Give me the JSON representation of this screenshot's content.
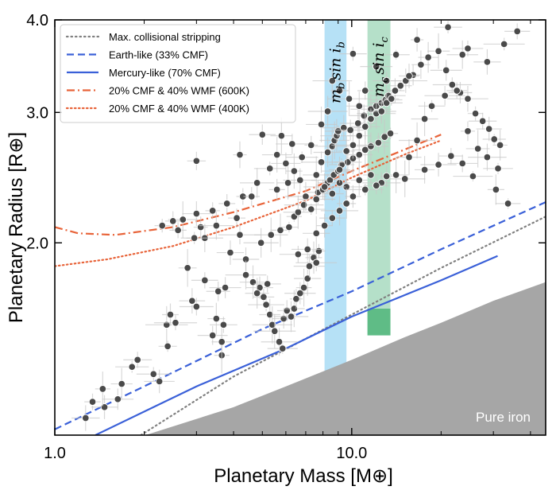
{
  "chart_data": {
    "type": "scatter",
    "x_scale": "log",
    "y_scale": "log",
    "xlabel": "Planetary Mass [M⊕]",
    "ylabel": "Planetary Radius [R⊕]",
    "xlim": [
      1.0,
      45
    ],
    "ylim": [
      1.1,
      4.0
    ],
    "x_ticks": [
      {
        "value": 1.0,
        "label": "1.0"
      },
      {
        "value": 10.0,
        "label": "10.0"
      }
    ],
    "y_ticks": [
      {
        "value": 2.0,
        "label": "2.0"
      },
      {
        "value": 3.0,
        "label": "3.0"
      },
      {
        "value": 4.0,
        "label": "4.0"
      }
    ],
    "legend_position": "top-left",
    "legend": [
      {
        "label": "Max. collisional stripping",
        "color": "#808080",
        "dash": "dotted-gray"
      },
      {
        "label": "Earth-like (33% CMF)",
        "color": "#3a60d8",
        "dash": "dashed"
      },
      {
        "label": "Mercury-like (70% CMF)",
        "color": "#3a60d8",
        "dash": "solid"
      },
      {
        "label": "20% CMF & 40% WMF (600K)",
        "color": "#e8643a",
        "dash": "dashdot"
      },
      {
        "label": "20% CMF & 40% WMF (400K)",
        "color": "#e8643a",
        "dash": "dotted"
      }
    ],
    "curves": [
      {
        "name": "Max. collisional stripping",
        "color": "#808080",
        "style": "dotted-gray",
        "points": [
          [
            1.95,
            1.1
          ],
          [
            4,
            1.32
          ],
          [
            10,
            1.6
          ],
          [
            20,
            1.85
          ],
          [
            45,
            2.17
          ]
        ]
      },
      {
        "name": "Earth-like (33% CMF)",
        "color": "#3a60d8",
        "style": "dashed",
        "points": [
          [
            1.0,
            1.12
          ],
          [
            2,
            1.28
          ],
          [
            5,
            1.53
          ],
          [
            10,
            1.72
          ],
          [
            20,
            1.96
          ],
          [
            45,
            2.27
          ]
        ]
      },
      {
        "name": "Mercury-like (70% CMF)",
        "color": "#3a60d8",
        "style": "solid",
        "points": [
          [
            1.37,
            1.1
          ],
          [
            3,
            1.28
          ],
          [
            6,
            1.44
          ],
          [
            10,
            1.59
          ],
          [
            20,
            1.78
          ],
          [
            31,
            1.92
          ]
        ]
      },
      {
        "name": "20% CMF & 40% WMF (600K)",
        "color": "#e8643a",
        "style": "dashdot",
        "points": [
          [
            1.0,
            2.1
          ],
          [
            1.2,
            2.06
          ],
          [
            1.6,
            2.05
          ],
          [
            2.5,
            2.1
          ],
          [
            4,
            2.2
          ],
          [
            7,
            2.35
          ],
          [
            10,
            2.5
          ],
          [
            15,
            2.67
          ],
          [
            20,
            2.8
          ]
        ]
      },
      {
        "name": "20% CMF & 40% WMF (400K)",
        "color": "#e8643a",
        "style": "dotted",
        "points": [
          [
            1.0,
            1.86
          ],
          [
            1.5,
            1.9
          ],
          [
            2.5,
            1.98
          ],
          [
            4,
            2.1
          ],
          [
            7,
            2.28
          ],
          [
            10,
            2.45
          ],
          [
            15,
            2.63
          ],
          [
            20,
            2.75
          ]
        ]
      }
    ],
    "bands": [
      {
        "label_main": "m",
        "label_sub": "b",
        "label_rest": "sin i",
        "x_range": [
          8.1,
          9.6
        ],
        "y_range": [
          1.3,
          4.0
        ],
        "color": "#a9dcf5"
      },
      {
        "label_main": "m",
        "label_sub": "c",
        "label_rest": "sin i",
        "x_range": [
          11.3,
          13.5
        ],
        "y_range": [
          1.5,
          4.0
        ],
        "color": "#a8dbbf",
        "inner_y_range": [
          1.5,
          1.63
        ],
        "inner_color": "#5fbc86"
      }
    ],
    "iron_region": {
      "label": "Pure iron",
      "color": "#a6a6a6",
      "boundary": [
        [
          2.02,
          1.1
        ],
        [
          4,
          1.2
        ],
        [
          6,
          1.28
        ],
        [
          10,
          1.39
        ],
        [
          15,
          1.49
        ],
        [
          20,
          1.56
        ],
        [
          30,
          1.67
        ],
        [
          45,
          1.77
        ]
      ]
    },
    "points": [
      [
        1.27,
        1.16
      ],
      [
        1.34,
        1.22
      ],
      [
        1.47,
        1.2
      ],
      [
        1.45,
        1.27
      ],
      [
        1.63,
        1.23
      ],
      [
        1.68,
        1.29
      ],
      [
        1.82,
        1.36
      ],
      [
        1.9,
        1.39
      ],
      [
        2.15,
        1.33
      ],
      [
        2.25,
        1.3
      ],
      [
        2.4,
        1.45
      ],
      [
        2.38,
        1.55
      ],
      [
        2.45,
        1.6
      ],
      [
        2.55,
        1.56
      ],
      [
        2.9,
        1.67
      ],
      [
        3.0,
        1.64
      ],
      [
        2.8,
        1.85
      ],
      [
        3.2,
        1.78
      ],
      [
        3.4,
        1.5
      ],
      [
        3.5,
        1.58
      ],
      [
        3.55,
        1.72
      ],
      [
        3.65,
        1.41
      ],
      [
        3.65,
        1.47
      ],
      [
        3.7,
        1.55
      ],
      [
        3.75,
        1.74
      ],
      [
        3.2,
        2.03
      ],
      [
        2.6,
        2.08
      ],
      [
        2.95,
        2.03
      ],
      [
        3.1,
        2.1
      ],
      [
        3.5,
        2.11
      ],
      [
        4.2,
        2.05
      ],
      [
        4.4,
        1.9
      ],
      [
        4.65,
        1.77
      ],
      [
        4.9,
        1.74
      ],
      [
        5.05,
        1.69
      ],
      [
        5.15,
        1.65
      ],
      [
        5.3,
        1.6
      ],
      [
        5.4,
        1.55
      ],
      [
        5.5,
        1.52
      ],
      [
        5.7,
        1.47
      ],
      [
        5.85,
        1.44
      ],
      [
        5.9,
        1.58
      ],
      [
        6.05,
        1.62
      ],
      [
        6.25,
        1.59
      ],
      [
        6.4,
        1.63
      ],
      [
        6.5,
        1.68
      ],
      [
        6.7,
        1.71
      ],
      [
        6.9,
        1.74
      ],
      [
        7.1,
        1.79
      ],
      [
        7.2,
        1.86
      ],
      [
        7.45,
        1.91
      ],
      [
        7.6,
        1.88
      ],
      [
        7.75,
        1.95
      ],
      [
        4.95,
        2.0
      ],
      [
        5.35,
        2.05
      ],
      [
        5.75,
        2.08
      ],
      [
        6.15,
        2.1
      ],
      [
        6.4,
        2.17
      ],
      [
        6.6,
        2.2
      ],
      [
        6.9,
        2.25
      ],
      [
        7.3,
        2.22
      ],
      [
        7.7,
        2.34
      ],
      [
        8.0,
        2.36
      ],
      [
        8.3,
        2.41
      ],
      [
        8.45,
        2.43
      ],
      [
        8.7,
        2.47
      ],
      [
        9.0,
        2.5
      ],
      [
        9.25,
        2.55
      ],
      [
        9.7,
        2.57
      ],
      [
        10.1,
        2.6
      ],
      [
        10.6,
        2.63
      ],
      [
        11.1,
        2.67
      ],
      [
        11.6,
        2.7
      ],
      [
        12.3,
        2.73
      ],
      [
        12.9,
        2.78
      ],
      [
        13.5,
        2.81
      ],
      [
        3.0,
        2.58
      ],
      [
        4.2,
        2.63
      ],
      [
        5.0,
        2.8
      ],
      [
        5.6,
        2.63
      ],
      [
        6.0,
        2.56
      ],
      [
        6.4,
        2.5
      ],
      [
        6.7,
        2.43
      ],
      [
        7.0,
        2.31
      ],
      [
        7.6,
        2.47
      ],
      [
        7.9,
        2.57
      ],
      [
        8.3,
        2.65
      ],
      [
        8.6,
        2.7
      ],
      [
        8.75,
        2.75
      ],
      [
        8.9,
        2.79
      ],
      [
        9.0,
        2.83
      ],
      [
        9.4,
        2.86
      ],
      [
        9.9,
        2.84
      ],
      [
        10.5,
        2.9
      ],
      [
        11.0,
        2.97
      ],
      [
        11.6,
        3.03
      ],
      [
        12.1,
        3.06
      ],
      [
        12.6,
        3.09
      ],
      [
        13.0,
        3.12
      ],
      [
        13.3,
        3.16
      ],
      [
        14.0,
        3.21
      ],
      [
        14.6,
        3.26
      ],
      [
        15.2,
        3.31
      ],
      [
        16.1,
        3.37
      ],
      [
        17.1,
        3.48
      ],
      [
        18.1,
        3.56
      ],
      [
        19.6,
        3.63
      ],
      [
        20.8,
        3.42
      ],
      [
        21.8,
        3.27
      ],
      [
        23.2,
        3.19
      ],
      [
        24.6,
        3.13
      ],
      [
        26.1,
        2.99
      ],
      [
        27.6,
        2.92
      ],
      [
        29.0,
        2.85
      ],
      [
        30.2,
        2.76
      ],
      [
        31.6,
        2.71
      ],
      [
        28.6,
        3.51
      ],
      [
        32.6,
        3.71
      ],
      [
        36.1,
        3.86
      ],
      [
        33.6,
        2.26
      ],
      [
        30.6,
        2.36
      ],
      [
        25.6,
        2.46
      ],
      [
        23.6,
        2.56
      ],
      [
        21.6,
        2.62
      ],
      [
        19.6,
        2.55
      ],
      [
        17.6,
        2.51
      ],
      [
        15.1,
        2.44
      ],
      [
        14.1,
        2.47
      ],
      [
        12.6,
        2.41
      ],
      [
        11.6,
        2.47
      ],
      [
        10.6,
        2.43
      ],
      [
        9.6,
        2.38
      ],
      [
        9.1,
        2.41
      ],
      [
        8.6,
        2.33
      ],
      [
        8.1,
        2.38
      ],
      [
        7.6,
        2.29
      ],
      [
        9.1,
        2.51
      ],
      [
        9.6,
        2.66
      ],
      [
        10.1,
        2.71
      ],
      [
        10.6,
        2.79
      ],
      [
        11.1,
        2.87
      ],
      [
        11.6,
        2.94
      ],
      [
        12.1,
        2.99
      ],
      [
        12.6,
        3.01
      ],
      [
        13.1,
        3.09
      ],
      [
        13.6,
        3.13
      ],
      [
        15.6,
        2.61
      ],
      [
        16.6,
        2.75
      ],
      [
        17.6,
        2.94
      ],
      [
        18.6,
        3.06
      ],
      [
        20.6,
        3.16
      ],
      [
        22.6,
        3.21
      ],
      [
        24.6,
        2.83
      ],
      [
        26.6,
        2.68
      ],
      [
        28.6,
        2.61
      ],
      [
        31.1,
        2.52
      ],
      [
        10.1,
        3.6
      ],
      [
        13.1,
        3.31
      ],
      [
        15.6,
        3.36
      ],
      [
        24.6,
        3.66
      ],
      [
        23.6,
        3.59
      ],
      [
        21.1,
        3.91
      ],
      [
        16.6,
        3.76
      ],
      [
        14.1,
        3.59
      ],
      [
        12.1,
        3.46
      ],
      [
        11.1,
        3.21
      ],
      [
        10.6,
        3.06
      ],
      [
        9.8,
        3.13
      ],
      [
        9.1,
        3.21
      ],
      [
        8.6,
        3.31
      ],
      [
        8.3,
        3.01
      ],
      [
        7.9,
        2.89
      ],
      [
        7.3,
        2.71
      ],
      [
        6.8,
        2.61
      ],
      [
        6.3,
        2.72
      ],
      [
        5.8,
        2.79
      ],
      [
        5.3,
        2.52
      ],
      [
        4.8,
        2.41
      ],
      [
        4.3,
        2.31
      ],
      [
        3.8,
        2.26
      ],
      [
        3.4,
        2.21
      ],
      [
        3.0,
        2.19
      ],
      [
        2.7,
        2.15
      ],
      [
        2.5,
        2.14
      ],
      [
        2.3,
        2.11
      ],
      [
        4.1,
        2.16
      ],
      [
        4.6,
        2.31
      ],
      [
        5.6,
        2.36
      ],
      [
        6.1,
        2.41
      ],
      [
        3.9,
        1.94
      ],
      [
        4.4,
        1.81
      ],
      [
        4.8,
        1.71
      ],
      [
        5.2,
        1.76
      ],
      [
        6.6,
        1.93
      ],
      [
        7.1,
        1.96
      ],
      [
        7.6,
        2.06
      ],
      [
        8.1,
        2.11
      ],
      [
        8.6,
        2.16
      ],
      [
        9.1,
        2.21
      ],
      [
        9.6,
        2.26
      ],
      [
        10.1,
        2.31
      ],
      [
        11.1,
        2.36
      ],
      [
        12.1,
        2.39
      ],
      [
        13.1,
        2.46
      ]
    ],
    "annotations": [
      "Pure iron"
    ]
  }
}
